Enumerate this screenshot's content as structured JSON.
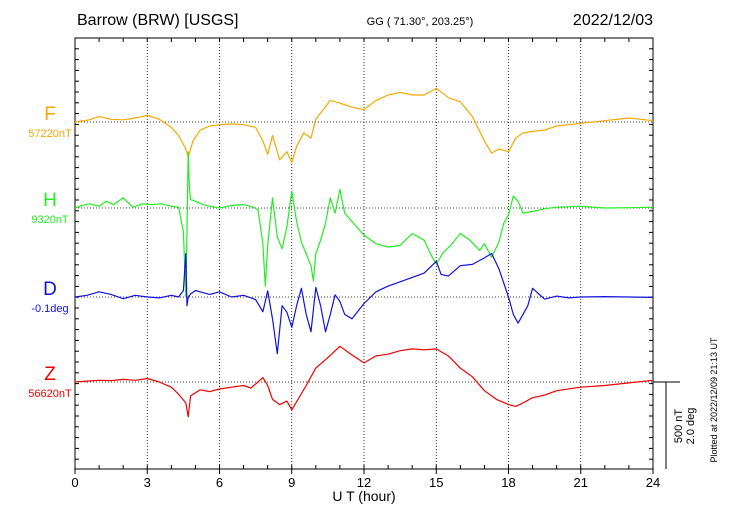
{
  "header": {
    "station": "Barrow (BRW)  [USGS]",
    "coords": "GG ( 71.30°, 203.25°)",
    "date": "2022/12/03"
  },
  "footer": {
    "plotted": "Plotted at 2022/12/09 21:13 UT"
  },
  "scale_bar": {
    "label_nt": "500 nT",
    "label_deg": "2.0 deg"
  },
  "chart_data": {
    "type": "line",
    "xlabel": "U T (hour)",
    "xlim": [
      0,
      24
    ],
    "xticks": [
      "0",
      "3",
      "6",
      "9",
      "12",
      "15",
      "18",
      "21",
      "24"
    ],
    "grid": true,
    "series": [
      {
        "name": "F",
        "baseline_label": "57220nT",
        "color": "#f5a800",
        "unit": "nT",
        "baseline": 57220,
        "x": [
          0,
          0.5,
          1,
          1.5,
          2,
          2.5,
          3,
          3.5,
          4,
          4.3,
          4.6,
          4.7,
          4.9,
          5.2,
          5.6,
          6,
          6.5,
          7,
          7.5,
          7.8,
          8,
          8.2,
          8.5,
          8.8,
          9,
          9.2,
          9.5,
          9.8,
          10,
          10.3,
          10.6,
          11,
          11.5,
          12,
          12.5,
          13,
          13.5,
          14,
          14.5,
          15,
          15.5,
          16,
          16.5,
          17,
          17.3,
          17.6,
          18,
          18.3,
          18.6,
          19,
          19.5,
          20,
          21,
          22,
          23,
          24
        ],
        "y": [
          57220,
          57226,
          57240,
          57230,
          57228,
          57235,
          57245,
          57230,
          57200,
          57170,
          57120,
          57090,
          57150,
          57190,
          57205,
          57210,
          57213,
          57210,
          57200,
          57150,
          57100,
          57170,
          57080,
          57110,
          57070,
          57130,
          57180,
          57160,
          57230,
          57265,
          57300,
          57290,
          57275,
          57265,
          57300,
          57320,
          57330,
          57320,
          57320,
          57345,
          57310,
          57295,
          57240,
          57150,
          57105,
          57120,
          57110,
          57160,
          57180,
          57185,
          57190,
          57205,
          57215,
          57225,
          57235,
          57225
        ]
      },
      {
        "name": "H",
        "baseline_label": "9320nT",
        "color": "#22ee22",
        "unit": "nT",
        "baseline": 9320,
        "x": [
          0,
          0.3,
          0.6,
          1,
          1.3,
          1.6,
          2,
          2.4,
          2.8,
          3.2,
          3.6,
          4,
          4.3,
          4.5,
          4.6,
          4.65,
          4.7,
          4.75,
          4.8,
          5,
          5.3,
          5.6,
          6,
          6.5,
          7,
          7.4,
          7.6,
          7.8,
          7.9,
          8,
          8.2,
          8.4,
          8.6,
          8.8,
          9,
          9.2,
          9.4,
          9.6,
          9.8,
          9.9,
          10,
          10.2,
          10.4,
          10.6,
          10.8,
          11,
          11.2,
          11.5,
          12,
          12.5,
          13,
          13.5,
          14,
          14.5,
          14.8,
          15,
          15.3,
          15.6,
          16,
          16.4,
          16.8,
          17,
          17.3,
          17.6,
          17.8,
          18,
          18.2,
          18.4,
          18.6,
          19,
          19.5,
          20,
          21,
          22,
          23,
          24
        ],
        "y": [
          9320,
          9335,
          9345,
          9330,
          9360,
          9340,
          9380,
          9325,
          9345,
          9340,
          9345,
          9330,
          9325,
          9180,
          8800,
          9200,
          9650,
          9440,
          9370,
          9360,
          9340,
          9330,
          9320,
          9335,
          9340,
          9325,
          9310,
          9110,
          8860,
          9100,
          9380,
          9150,
          9080,
          9210,
          9420,
          9240,
          9120,
          9050,
          8980,
          8890,
          9050,
          9130,
          9230,
          9380,
          9290,
          9430,
          9290,
          9240,
          9160,
          9110,
          9090,
          9100,
          9170,
          9130,
          9040,
          8990,
          9060,
          9100,
          9170,
          9130,
          9070,
          9110,
          9030,
          9120,
          9230,
          9280,
          9390,
          9360,
          9290,
          9300,
          9315,
          9325,
          9330,
          9320,
          9322,
          9325
        ]
      },
      {
        "name": "D",
        "baseline_label": "-0.1deg",
        "color": "#1111dd",
        "unit": "deg",
        "baseline": -0.1,
        "x": [
          0,
          0.5,
          1,
          1.5,
          2,
          2.5,
          3,
          3.5,
          4,
          4.3,
          4.5,
          4.6,
          4.65,
          4.7,
          4.8,
          5,
          5.3,
          5.6,
          6,
          6.5,
          7,
          7.5,
          7.8,
          8,
          8.2,
          8.4,
          8.6,
          8.8,
          9,
          9.2,
          9.4,
          9.6,
          9.8,
          10,
          10.2,
          10.4,
          10.6,
          10.8,
          11,
          11.2,
          11.5,
          12,
          12.5,
          13,
          13.5,
          14,
          14.5,
          15,
          15.2,
          15.5,
          16,
          16.5,
          17,
          17.3,
          17.6,
          18,
          18.2,
          18.4,
          18.6,
          18.8,
          19,
          19.5,
          20,
          20.5,
          21,
          22,
          23,
          24
        ],
        "y": [
          -0.1,
          -0.06,
          0.02,
          -0.04,
          -0.14,
          -0.06,
          -0.1,
          -0.12,
          -0.06,
          -0.1,
          0.05,
          0.9,
          -0.3,
          -0.1,
          -0.03,
          0.05,
          0.0,
          -0.04,
          0.02,
          -0.1,
          -0.06,
          -0.16,
          -0.44,
          0.04,
          -0.6,
          -1.4,
          -0.3,
          -0.45,
          -0.8,
          -0.3,
          0.1,
          -0.5,
          -0.9,
          0.12,
          -0.3,
          -0.9,
          -0.5,
          -0.05,
          -0.2,
          -0.5,
          -0.6,
          -0.25,
          0.02,
          0.15,
          0.25,
          0.35,
          0.45,
          0.72,
          0.42,
          0.38,
          0.62,
          0.65,
          0.8,
          0.9,
          0.55,
          -0.1,
          -0.5,
          -0.7,
          -0.5,
          -0.3,
          0.1,
          -0.15,
          -0.08,
          -0.12,
          -0.1,
          -0.09,
          -0.1,
          -0.11
        ]
      },
      {
        "name": "Z",
        "baseline_label": "56620nT",
        "color": "#ee0000",
        "unit": "nT",
        "baseline": 56620,
        "x": [
          0,
          0.5,
          1,
          1.5,
          2,
          2.5,
          3,
          3.5,
          4,
          4.3,
          4.6,
          4.7,
          4.8,
          5.2,
          5.6,
          6,
          6.5,
          7,
          7.3,
          7.6,
          7.8,
          8,
          8.2,
          8.5,
          8.8,
          9,
          9.3,
          9.6,
          10,
          10.5,
          11,
          11.5,
          12,
          12.5,
          13,
          13.5,
          14,
          14.5,
          15,
          15.5,
          16,
          16.5,
          17,
          17.5,
          18,
          18.3,
          18.6,
          19,
          19.5,
          20,
          21,
          22,
          23,
          24
        ],
        "y": [
          56620,
          56625,
          56630,
          56628,
          56635,
          56630,
          56640,
          56620,
          56590,
          56550,
          56500,
          56420,
          56540,
          56575,
          56565,
          56580,
          56590,
          56600,
          56585,
          56620,
          56645,
          56600,
          56520,
          56490,
          56510,
          56460,
          56530,
          56600,
          56700,
          56760,
          56825,
          56775,
          56730,
          56770,
          56780,
          56800,
          56810,
          56805,
          56810,
          56770,
          56700,
          56650,
          56570,
          56520,
          56490,
          56480,
          56500,
          56530,
          56545,
          56570,
          56590,
          56600,
          56615,
          56630
        ]
      }
    ]
  }
}
